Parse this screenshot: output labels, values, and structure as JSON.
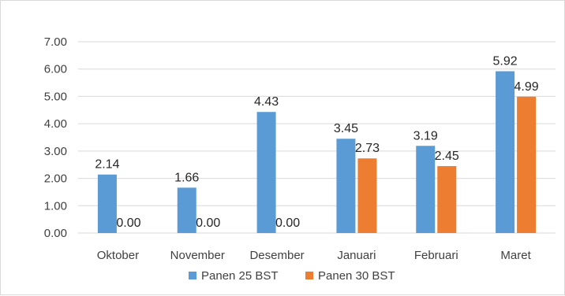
{
  "chart_data": {
    "type": "bar",
    "categories": [
      "Oktober",
      "November",
      "Desember",
      "Januari",
      "Februari",
      "Maret"
    ],
    "series": [
      {
        "name": "Panen 25 BST",
        "values": [
          2.14,
          1.66,
          4.43,
          3.45,
          3.19,
          5.92
        ],
        "color": "#5b9bd5"
      },
      {
        "name": "Panen 30 BST",
        "values": [
          0.0,
          0.0,
          0.0,
          2.73,
          2.45,
          4.99
        ],
        "color": "#ed7d31"
      }
    ],
    "y_ticks": [
      "0.00",
      "1.00",
      "2.00",
      "3.00",
      "4.00",
      "5.00",
      "6.00",
      "7.00"
    ],
    "ylim": [
      0,
      7
    ],
    "data_labels": [
      [
        "2.14",
        "1.66",
        "4.43",
        "3.45",
        "3.19",
        "5.92"
      ],
      [
        "0.00",
        "0.00",
        "0.00",
        "2.73",
        "2.45",
        "4.99"
      ]
    ],
    "grid": true,
    "legend_position": "bottom",
    "colors": {
      "gridline": "#d9d9d9",
      "text": "#404040"
    }
  }
}
